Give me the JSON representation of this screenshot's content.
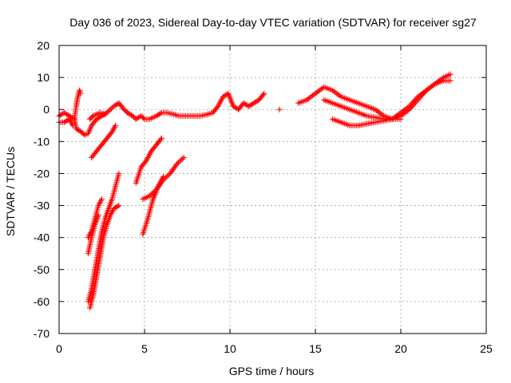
{
  "chart_data": {
    "type": "scatter",
    "title": "Day 036 of 2023, Sidereal Day-to-day VTEC variation (SDTVAR) for receiver sg27",
    "xlabel": "GPS time / hours",
    "ylabel": "SDTVAR / TECUs",
    "xlim": [
      0,
      25
    ],
    "ylim": [
      -70,
      20
    ],
    "xticks": [
      0,
      5,
      10,
      15,
      20,
      25
    ],
    "yticks": [
      -70,
      -60,
      -50,
      -40,
      -30,
      -20,
      -10,
      0,
      10,
      20
    ],
    "grid": true,
    "marker": "+",
    "color": "#ff0000",
    "series": [
      {
        "name": "main",
        "points": [
          [
            0,
            -2
          ],
          [
            0.3,
            -1
          ],
          [
            0.6,
            -2
          ],
          [
            0.9,
            -3
          ],
          [
            1.0,
            -6
          ],
          [
            1.3,
            -7
          ],
          [
            1.5,
            -8
          ],
          [
            1.7,
            -7.5
          ],
          [
            1.9,
            -5
          ],
          [
            2.2,
            -3
          ],
          [
            2.5,
            -2
          ],
          [
            2.8,
            -1
          ],
          [
            3.2,
            1
          ],
          [
            3.5,
            2
          ],
          [
            3.8,
            0
          ],
          [
            4.0,
            -1
          ],
          [
            4.3,
            -2
          ],
          [
            4.5,
            -3
          ],
          [
            4.8,
            -2
          ],
          [
            5.0,
            -3
          ],
          [
            5.3,
            -3
          ],
          [
            5.7,
            -2
          ],
          [
            6.0,
            -1
          ],
          [
            6.3,
            -1
          ],
          [
            6.7,
            -1.5
          ],
          [
            7.0,
            -2
          ],
          [
            7.3,
            -2
          ],
          [
            7.7,
            -2
          ],
          [
            8.0,
            -2
          ],
          [
            8.3,
            -2
          ],
          [
            8.7,
            -1.5
          ],
          [
            9.0,
            -1
          ],
          [
            9.3,
            1
          ],
          [
            9.6,
            4
          ],
          [
            9.9,
            5
          ],
          [
            10.2,
            1
          ],
          [
            10.5,
            0
          ],
          [
            10.8,
            2
          ],
          [
            11.1,
            1
          ],
          [
            11.4,
            2
          ],
          [
            11.7,
            3
          ],
          [
            12.0,
            5
          ]
        ]
      },
      {
        "name": "early-dip",
        "points": [
          [
            0,
            -4
          ],
          [
            0.3,
            -4
          ],
          [
            0.6,
            -3
          ],
          [
            0.8,
            -5
          ]
        ]
      },
      {
        "name": "spike-1",
        "points": [
          [
            0.9,
            -3
          ],
          [
            1.0,
            1
          ],
          [
            1.1,
            4
          ],
          [
            1.2,
            6
          ],
          [
            1.25,
            5
          ]
        ]
      },
      {
        "name": "mid-arc",
        "points": [
          [
            1.8,
            -3
          ],
          [
            2.0,
            -2
          ],
          [
            2.4,
            -1
          ],
          [
            2.7,
            -1.5
          ]
        ]
      },
      {
        "name": "upper-line-a",
        "points": [
          [
            1.9,
            -15
          ],
          [
            2.2,
            -13
          ],
          [
            2.5,
            -11
          ],
          [
            2.8,
            -9
          ],
          [
            3.1,
            -7
          ],
          [
            3.3,
            -5
          ]
        ]
      },
      {
        "name": "upper-line-b",
        "points": [
          [
            1.7,
            -40
          ],
          [
            1.9,
            -38
          ],
          [
            2.1,
            -34
          ],
          [
            2.3,
            -30
          ],
          [
            2.5,
            -28
          ]
        ]
      },
      {
        "name": "steep-line-a",
        "points": [
          [
            1.7,
            -60
          ],
          [
            1.9,
            -56
          ],
          [
            2.1,
            -50
          ],
          [
            2.3,
            -44
          ],
          [
            2.5,
            -38
          ],
          [
            2.7,
            -34
          ],
          [
            2.9,
            -31
          ],
          [
            3.1,
            -28
          ],
          [
            3.3,
            -24
          ],
          [
            3.5,
            -20
          ]
        ]
      },
      {
        "name": "steep-line-b",
        "points": [
          [
            1.8,
            -62
          ],
          [
            2.0,
            -58
          ],
          [
            2.2,
            -52
          ],
          [
            2.4,
            -46
          ],
          [
            2.6,
            -40
          ],
          [
            2.8,
            -36
          ],
          [
            3.0,
            -33
          ],
          [
            3.2,
            -31
          ],
          [
            3.5,
            -30
          ]
        ]
      },
      {
        "name": "steep-line-c",
        "points": [
          [
            1.7,
            -45
          ],
          [
            1.9,
            -40
          ],
          [
            2.1,
            -36
          ],
          [
            2.3,
            -33
          ]
        ]
      },
      {
        "name": "five-hour-a",
        "points": [
          [
            4.5,
            -23
          ],
          [
            4.8,
            -18
          ],
          [
            5.1,
            -16
          ],
          [
            5.4,
            -13
          ],
          [
            5.7,
            -11
          ],
          [
            6.0,
            -9
          ]
        ]
      },
      {
        "name": "five-hour-b",
        "points": [
          [
            4.9,
            -39
          ],
          [
            5.2,
            -34
          ],
          [
            5.5,
            -28
          ],
          [
            5.8,
            -24
          ],
          [
            6.1,
            -21
          ]
        ]
      },
      {
        "name": "five-hour-c",
        "points": [
          [
            4.9,
            -28
          ],
          [
            5.3,
            -27
          ],
          [
            5.7,
            -25
          ],
          [
            6.1,
            -22
          ],
          [
            6.5,
            -20
          ],
          [
            6.9,
            -17
          ],
          [
            7.3,
            -15
          ]
        ]
      },
      {
        "name": "isolated",
        "points": [
          [
            12.9,
            0
          ]
        ]
      },
      {
        "name": "evening-upper",
        "points": [
          [
            14.0,
            2
          ],
          [
            14.5,
            3
          ],
          [
            15.0,
            5
          ],
          [
            15.5,
            7
          ],
          [
            16.0,
            6
          ],
          [
            16.5,
            4
          ],
          [
            17.0,
            3
          ],
          [
            17.5,
            2
          ],
          [
            18.0,
            1
          ],
          [
            18.5,
            0
          ],
          [
            19.0,
            -2
          ],
          [
            19.5,
            -3
          ],
          [
            20.0,
            -2
          ],
          [
            20.5,
            0
          ],
          [
            21.0,
            3
          ],
          [
            21.5,
            6
          ],
          [
            22.0,
            8
          ],
          [
            22.5,
            10
          ],
          [
            22.9,
            11
          ]
        ]
      },
      {
        "name": "evening-lower",
        "points": [
          [
            16.0,
            -3
          ],
          [
            16.5,
            -4
          ],
          [
            17.0,
            -5
          ],
          [
            17.5,
            -5
          ],
          [
            18.0,
            -4.5
          ],
          [
            18.5,
            -4
          ],
          [
            19.0,
            -3.5
          ],
          [
            19.5,
            -3
          ],
          [
            20.0,
            -1
          ],
          [
            20.5,
            1
          ],
          [
            21.0,
            4
          ],
          [
            21.5,
            6
          ],
          [
            22.0,
            8
          ],
          [
            22.5,
            9
          ],
          [
            22.9,
            9
          ]
        ]
      },
      {
        "name": "evening-mid",
        "points": [
          [
            15.5,
            3
          ],
          [
            16.0,
            2
          ],
          [
            16.5,
            1
          ],
          [
            17.0,
            0
          ],
          [
            17.5,
            -1
          ],
          [
            18.0,
            -2
          ],
          [
            18.5,
            -2.5
          ],
          [
            19.0,
            -3
          ],
          [
            19.5,
            -3
          ],
          [
            20.0,
            -3
          ]
        ]
      }
    ]
  }
}
